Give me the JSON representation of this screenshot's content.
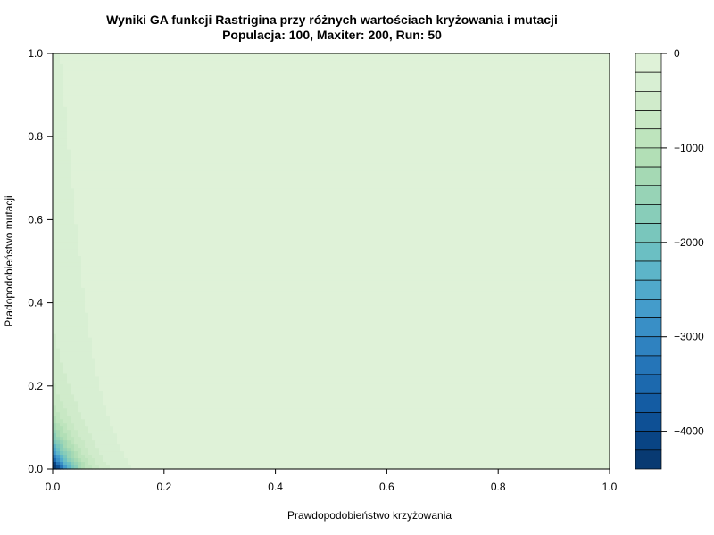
{
  "chart_data": {
    "type": "heatmap",
    "subtype": "filled-contour",
    "title": "Wyniki GA funkcji Rastrigina przy różnych wartościach kryżowania i mutacji",
    "subtitle": "Populacja: 100, Maxiter: 200, Run: 50",
    "xlabel": "Prawdopodobieństwo krzyżowania",
    "ylabel": "Pradopodobieństwo mutacji",
    "xlim": [
      0,
      1
    ],
    "ylim": [
      0,
      1
    ],
    "x_ticks": [
      "0.0",
      "0.2",
      "0.4",
      "0.6",
      "0.8",
      "1.0"
    ],
    "y_ticks": [
      "0.0",
      "0.2",
      "0.4",
      "0.6",
      "0.8",
      "1.0"
    ],
    "grid": false,
    "colorbar": {
      "range": [
        -4400,
        0
      ],
      "tick_values": [
        0,
        -1000,
        -2000,
        -3000,
        -4000
      ],
      "tick_labels": [
        "0",
        "−1000",
        "−2000",
        "−3000",
        "−4000"
      ],
      "levels": [
        0,
        -200,
        -400,
        -600,
        -800,
        -1000,
        -1200,
        -1400,
        -1600,
        -1800,
        -2000,
        -2200,
        -2400,
        -2600,
        -2800,
        -3000,
        -3200,
        -3400,
        -3600,
        -3800,
        -4000,
        -4200,
        -4400
      ],
      "palette": [
        "#dff2d8",
        "#d8efd3",
        "#d0ebcb",
        "#c8e8c4",
        "#bee4bd",
        "#b2dfb6",
        "#a5d9b4",
        "#97d3b6",
        "#88cdb9",
        "#79c6bc",
        "#6bbfc3",
        "#5db5c9",
        "#50a9cb",
        "#449ccb",
        "#398fc6",
        "#2f82c0",
        "#2575b8",
        "#1c69ae",
        "#145ca3",
        "#0e5095",
        "#094484",
        "#083a72"
      ]
    },
    "field_samples": [
      {
        "x": 0.0,
        "y": 0.0,
        "value": -4300
      },
      {
        "x": 0.0,
        "y": 0.05,
        "value": -2800
      },
      {
        "x": 0.05,
        "y": 0.0,
        "value": -2400
      },
      {
        "x": 0.05,
        "y": 0.05,
        "value": -1300
      },
      {
        "x": 0.0,
        "y": 0.2,
        "value": -900
      },
      {
        "x": 0.1,
        "y": 0.0,
        "value": -400
      },
      {
        "x": 0.0,
        "y": 0.5,
        "value": -300
      },
      {
        "x": 0.1,
        "y": 0.5,
        "value": -100
      },
      {
        "x": 0.2,
        "y": 0.0,
        "value": -100
      },
      {
        "x": 0.5,
        "y": 0.5,
        "value": -30
      },
      {
        "x": 1.0,
        "y": 1.0,
        "value": -10
      }
    ]
  }
}
